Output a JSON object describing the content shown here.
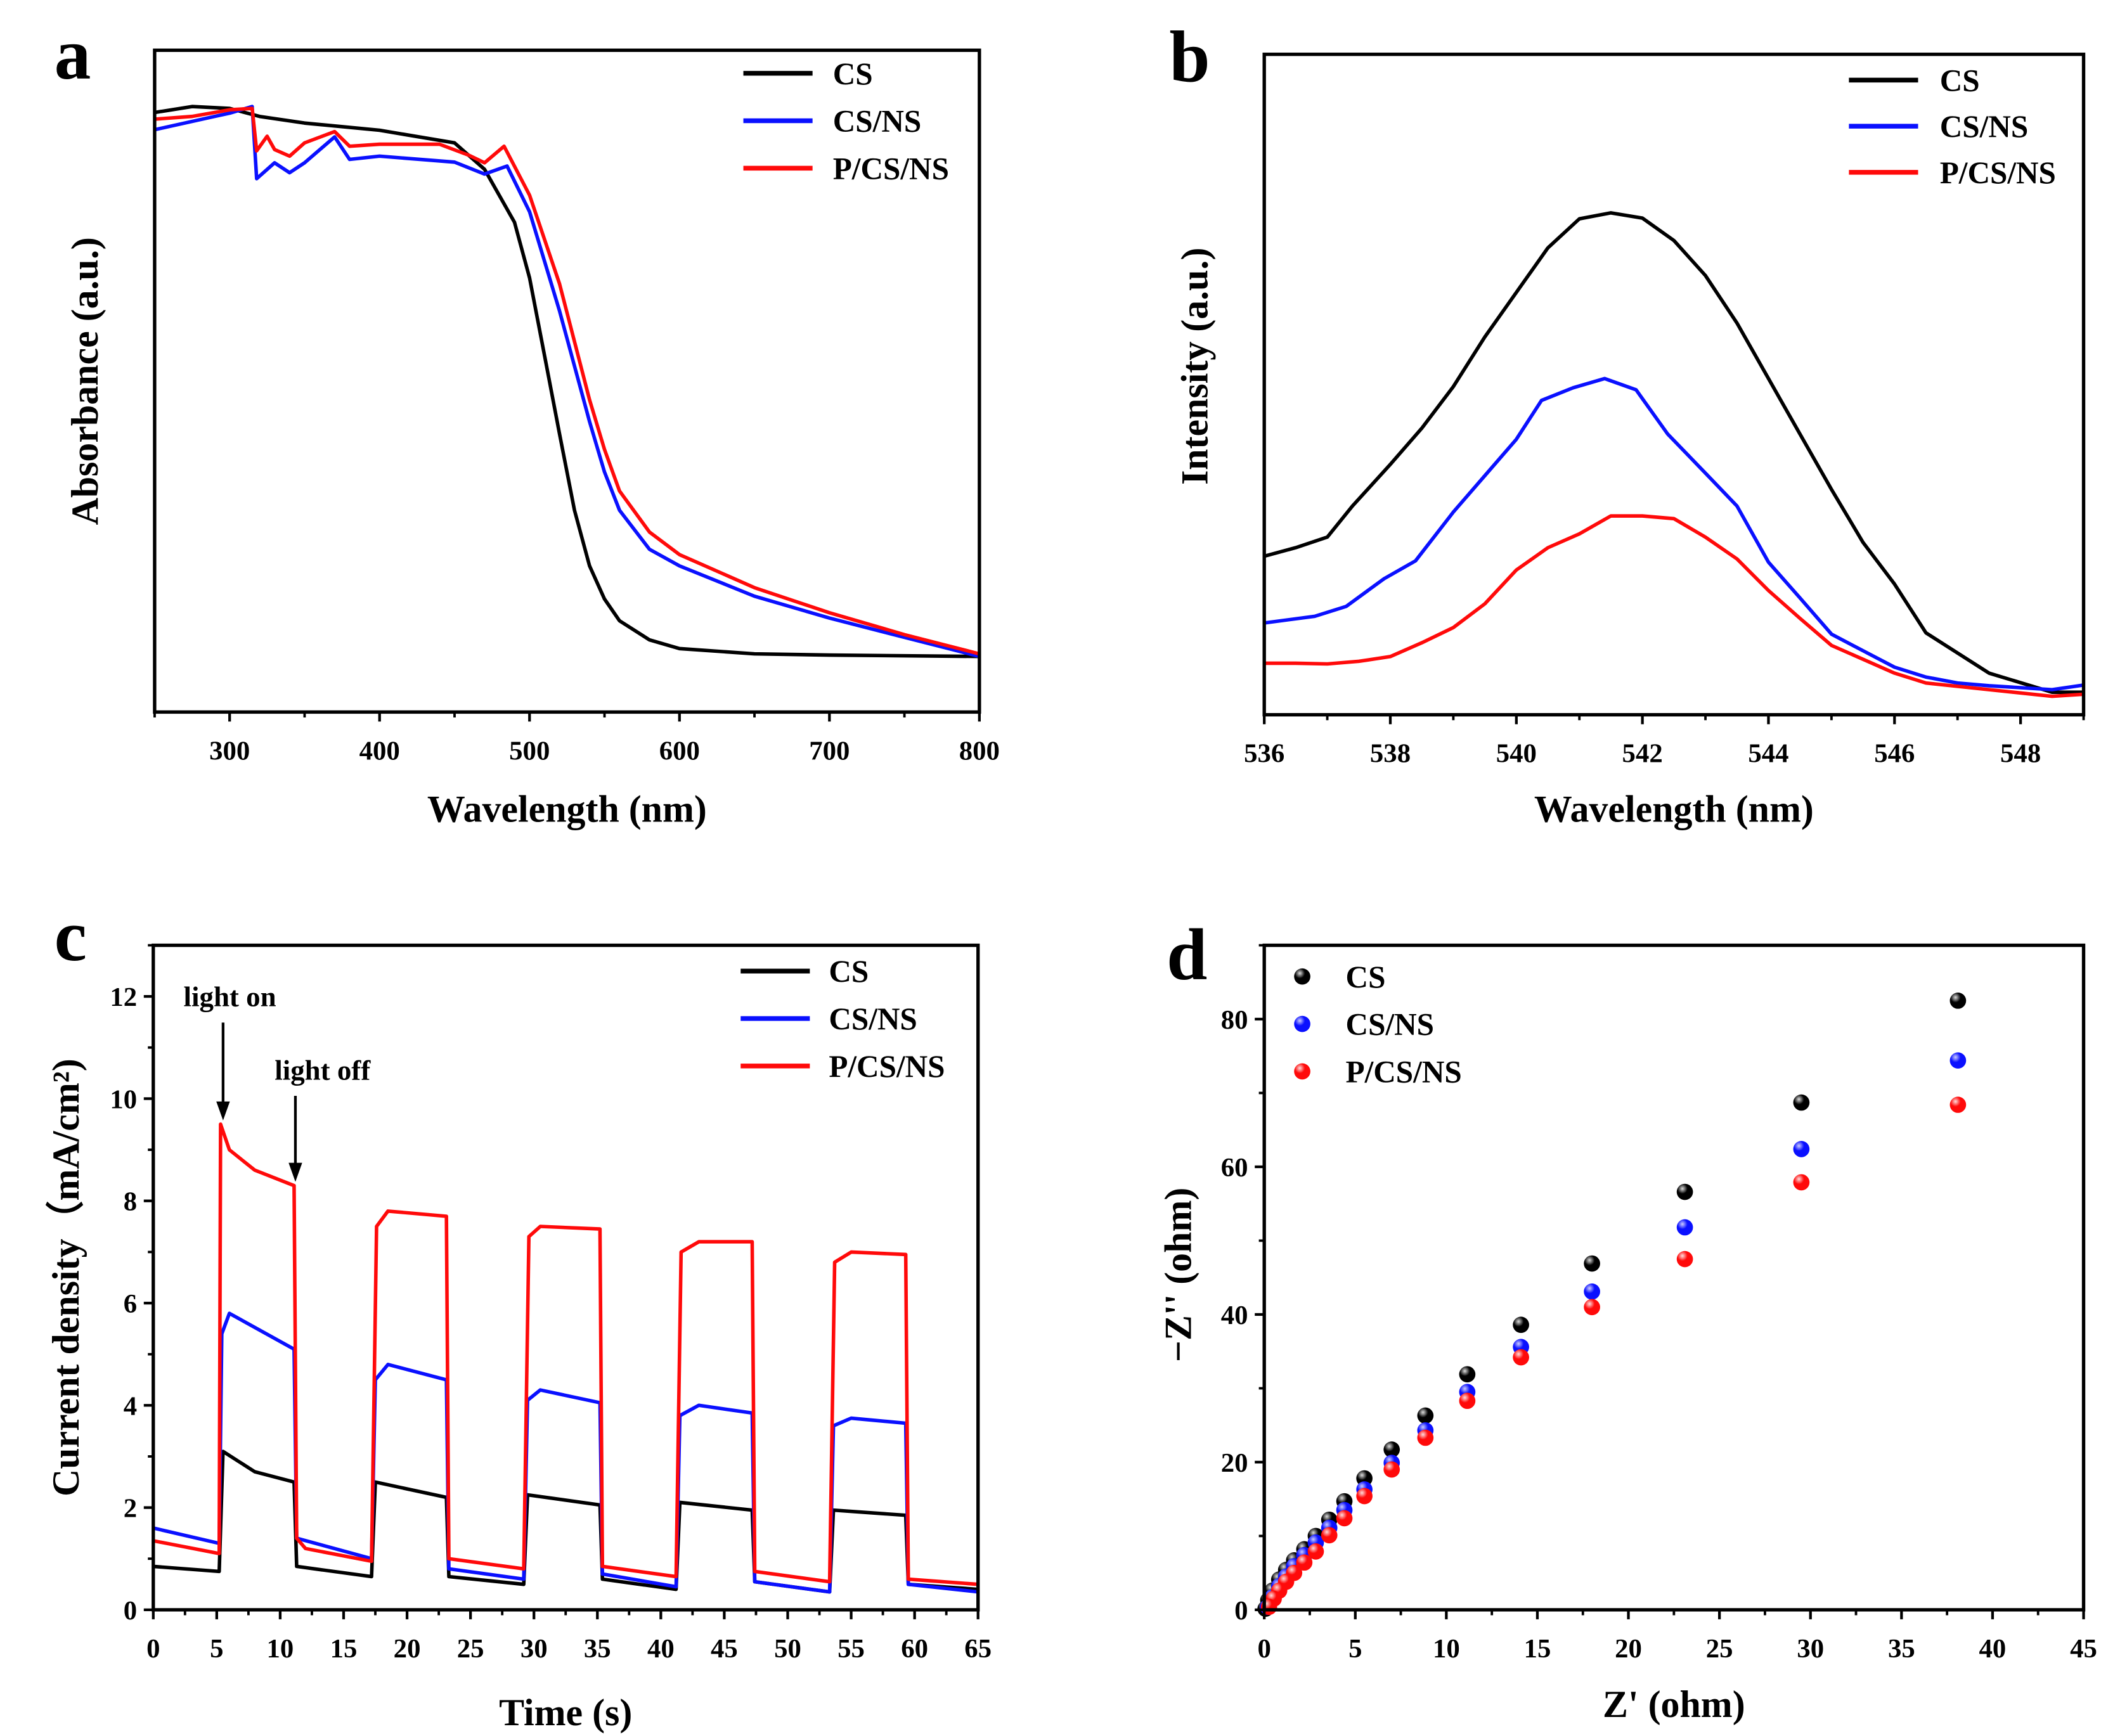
{
  "colors": {
    "CS": "#000000",
    "CS/NS": "#0a10ff",
    "P/CS/NS": "#ff0a0a"
  },
  "chart_data": [
    {
      "panel": "a",
      "type": "line",
      "xlabel": "Wavelength (nm)",
      "ylabel": "Absorbance (a.u.)",
      "xlim": [
        250,
        800
      ],
      "ylim": [
        0,
        1
      ],
      "xticks": [
        300,
        400,
        500,
        600,
        700,
        800
      ],
      "yticks": [],
      "grid": false,
      "legend": "top-right",
      "series": [
        {
          "name": "CS",
          "x": [
            250,
            275,
            300,
            320,
            350,
            400,
            450,
            470,
            490,
            500,
            510,
            520,
            530,
            540,
            550,
            560,
            580,
            600,
            650,
            700,
            800
          ],
          "y": [
            0.906,
            0.915,
            0.912,
            0.9,
            0.89,
            0.879,
            0.86,
            0.82,
            0.74,
            0.656,
            0.539,
            0.42,
            0.305,
            0.221,
            0.171,
            0.138,
            0.109,
            0.096,
            0.088,
            0.086,
            0.084
          ]
        },
        {
          "name": "CS/NS",
          "x": [
            250,
            270,
            290,
            300,
            315,
            318,
            330,
            340,
            350,
            370,
            380,
            400,
            450,
            470,
            485,
            500,
            520,
            540,
            550,
            560,
            580,
            600,
            650,
            700,
            750,
            800
          ],
          "y": [
            0.88,
            0.89,
            0.9,
            0.905,
            0.915,
            0.806,
            0.83,
            0.815,
            0.83,
            0.869,
            0.835,
            0.84,
            0.831,
            0.813,
            0.825,
            0.756,
            0.606,
            0.439,
            0.363,
            0.305,
            0.246,
            0.221,
            0.175,
            0.142,
            0.113,
            0.084
          ]
        },
        {
          "name": "P/CS/NS",
          "x": [
            250,
            275,
            300,
            315,
            318,
            325,
            330,
            340,
            350,
            370,
            380,
            400,
            440,
            460,
            470,
            483,
            500,
            520,
            540,
            550,
            560,
            580,
            600,
            650,
            700,
            750,
            800
          ],
          "y": [
            0.896,
            0.9,
            0.91,
            0.912,
            0.848,
            0.87,
            0.85,
            0.84,
            0.86,
            0.877,
            0.855,
            0.858,
            0.858,
            0.841,
            0.83,
            0.855,
            0.781,
            0.647,
            0.472,
            0.397,
            0.334,
            0.272,
            0.238,
            0.188,
            0.15,
            0.117,
            0.088
          ]
        }
      ]
    },
    {
      "panel": "b",
      "type": "line",
      "xlabel": "Wavelength (nm)",
      "ylabel": "Intensity (a.u.)",
      "xlim": [
        536,
        549
      ],
      "ylim": [
        0,
        1
      ],
      "xticks": [
        536,
        538,
        540,
        542,
        544,
        546,
        548
      ],
      "yticks": [],
      "grid": false,
      "legend": "top-right",
      "series": [
        {
          "name": "CS",
          "x": [
            536,
            536.5,
            537,
            537.4,
            538,
            538.5,
            539,
            539.5,
            540.5,
            541,
            541.5,
            542,
            542.5,
            543,
            543.5,
            544,
            544.5,
            545,
            545.5,
            546,
            546.5,
            547.5,
            548.5,
            549
          ],
          "y": [
            0.24,
            0.253,
            0.269,
            0.316,
            0.379,
            0.434,
            0.497,
            0.572,
            0.707,
            0.751,
            0.76,
            0.752,
            0.718,
            0.665,
            0.593,
            0.509,
            0.425,
            0.341,
            0.261,
            0.198,
            0.124,
            0.063,
            0.034,
            0.034
          ]
        },
        {
          "name": "CS/NS",
          "x": [
            536,
            536.8,
            537.3,
            537.9,
            538.4,
            539,
            539.5,
            540,
            540.4,
            540.9,
            541.4,
            541.9,
            542.4,
            543,
            543.5,
            544,
            544.5,
            545,
            545.5,
            546,
            546.5,
            547,
            547.5,
            548.5,
            549
          ],
          "y": [
            0.139,
            0.149,
            0.164,
            0.206,
            0.233,
            0.307,
            0.362,
            0.417,
            0.476,
            0.495,
            0.509,
            0.492,
            0.425,
            0.366,
            0.316,
            0.231,
            0.177,
            0.122,
            0.097,
            0.072,
            0.057,
            0.048,
            0.044,
            0.038,
            0.045
          ]
        },
        {
          "name": "P/CS/NS",
          "x": [
            536,
            536.5,
            537,
            537.5,
            538,
            538.5,
            539,
            539.5,
            540,
            540.5,
            541,
            541.5,
            542,
            542.5,
            543,
            543.5,
            544,
            544.5,
            545,
            545.5,
            546,
            546.5,
            547.5,
            548.5,
            549
          ],
          "y": [
            0.078,
            0.078,
            0.077,
            0.081,
            0.088,
            0.109,
            0.132,
            0.168,
            0.219,
            0.253,
            0.274,
            0.301,
            0.301,
            0.297,
            0.269,
            0.236,
            0.188,
            0.146,
            0.105,
            0.084,
            0.063,
            0.048,
            0.038,
            0.028,
            0.031
          ]
        }
      ]
    },
    {
      "panel": "c",
      "type": "line",
      "xlabel": "Time (s)",
      "ylabel": "Current density（mA/cm²)",
      "xlim": [
        0,
        65
      ],
      "ylim": [
        0,
        13
      ],
      "xticks": [
        0,
        5,
        10,
        15,
        20,
        25,
        30,
        35,
        40,
        45,
        50,
        55,
        60,
        65
      ],
      "yticks": [
        0,
        2,
        4,
        6,
        8,
        10,
        12
      ],
      "grid": false,
      "legend": "top-right",
      "annotations": [
        {
          "text": "light on",
          "x": 5.5,
          "y": 9.6
        },
        {
          "text": "light off",
          "x": 11.2,
          "y": 8.4
        }
      ],
      "series": [
        {
          "name": "CS",
          "x": [
            0,
            5.2,
            5.5,
            8,
            11.1,
            11.3,
            17.2,
            17.5,
            23.1,
            23.3,
            29.2,
            29.5,
            35.2,
            35.4,
            41.2,
            41.5,
            47.2,
            47.4,
            53.3,
            53.6,
            59.3,
            59.5,
            65
          ],
          "y": [
            0.85,
            0.75,
            3.1,
            2.7,
            2.5,
            0.85,
            0.65,
            2.5,
            2.2,
            0.65,
            0.5,
            2.25,
            2.05,
            0.6,
            0.4,
            2.1,
            1.95,
            0.55,
            0.35,
            1.95,
            1.85,
            0.5,
            0.4
          ]
        },
        {
          "name": "CS/NS",
          "x": [
            0,
            5.2,
            5.4,
            6,
            11.1,
            11.3,
            17.2,
            17.5,
            18.5,
            23.1,
            23.3,
            29.2,
            29.5,
            30.5,
            35.2,
            35.4,
            41.2,
            41.5,
            43,
            47.2,
            47.4,
            53.3,
            53.6,
            55,
            59.3,
            59.5,
            65
          ],
          "y": [
            1.6,
            1.3,
            5.4,
            5.8,
            5.1,
            1.4,
            1.0,
            4.5,
            4.8,
            4.5,
            0.8,
            0.6,
            4.1,
            4.3,
            4.05,
            0.7,
            0.45,
            3.8,
            4.0,
            3.85,
            0.55,
            0.35,
            3.6,
            3.75,
            3.65,
            0.5,
            0.35
          ]
        },
        {
          "name": "P/CS/NS",
          "x": [
            0,
            5.2,
            5.3,
            6,
            8,
            11.1,
            11.3,
            12,
            17.2,
            17.6,
            18.5,
            23.1,
            23.3,
            29.2,
            29.6,
            30.5,
            35.2,
            35.4,
            41.2,
            41.6,
            43,
            47.2,
            47.4,
            53.3,
            53.7,
            55,
            59.3,
            59.5,
            65
          ],
          "y": [
            1.35,
            1.1,
            9.5,
            9.0,
            8.6,
            8.3,
            1.4,
            1.2,
            0.95,
            7.5,
            7.8,
            7.7,
            1.0,
            0.8,
            7.3,
            7.5,
            7.45,
            0.85,
            0.65,
            7.0,
            7.2,
            7.2,
            0.75,
            0.55,
            6.8,
            7.0,
            6.95,
            0.6,
            0.5
          ]
        }
      ]
    },
    {
      "panel": "d",
      "type": "scatter",
      "xlabel": "Z' (ohm)",
      "ylabel": "−Z'' (ohm)",
      "xlim": [
        0,
        45
      ],
      "ylim": [
        0,
        90
      ],
      "xticks": [
        0,
        5,
        10,
        15,
        20,
        25,
        30,
        35,
        40,
        45
      ],
      "yticks": [
        0,
        20,
        40,
        60,
        80
      ],
      "grid": false,
      "legend": "top-left",
      "series": [
        {
          "name": "CS",
          "x": [
            38.1,
            29.5,
            23.1,
            18.0,
            14.1,
            11.15,
            8.85,
            7.0,
            5.5,
            4.4,
            3.57,
            2.83,
            2.2,
            1.64,
            1.2,
            0.82,
            0.45,
            0.22,
            0.07
          ],
          "y": [
            82.5,
            68.7,
            56.6,
            46.9,
            38.6,
            31.9,
            26.3,
            21.7,
            17.8,
            14.7,
            12.2,
            10.0,
            8.2,
            6.7,
            5.4,
            4.1,
            2.6,
            1.3,
            0.15
          ]
        },
        {
          "name": "CS/NS",
          "x": [
            38.1,
            29.5,
            23.1,
            18.0,
            14.1,
            11.15,
            8.85,
            7.0,
            5.5,
            4.4,
            3.57,
            2.83,
            2.2,
            1.64,
            1.2,
            0.82,
            0.45,
            0.2
          ],
          "y": [
            74.4,
            62.4,
            51.8,
            43.1,
            35.6,
            29.5,
            24.3,
            19.9,
            16.3,
            13.5,
            11.1,
            9.1,
            7.4,
            5.9,
            4.5,
            3.2,
            1.7,
            0.4
          ]
        },
        {
          "name": "P/CS/NS",
          "x": [
            38.1,
            29.5,
            23.1,
            18.0,
            14.1,
            11.15,
            8.85,
            7.0,
            5.5,
            4.4,
            3.57,
            2.83,
            2.2,
            1.64,
            1.2,
            0.82,
            0.52,
            0.26
          ],
          "y": [
            68.4,
            57.9,
            47.5,
            41.0,
            34.2,
            28.3,
            23.3,
            19.0,
            15.4,
            12.4,
            10.1,
            7.9,
            6.4,
            5.0,
            3.8,
            2.6,
            1.5,
            0.4
          ]
        }
      ]
    }
  ],
  "panel_letters": [
    "a",
    "b",
    "c",
    "d"
  ]
}
